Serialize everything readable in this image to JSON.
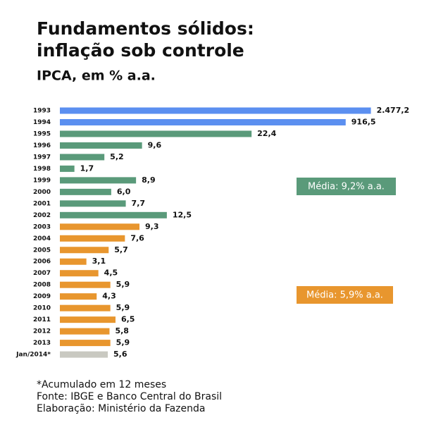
{
  "chart_data": {
    "type": "bar",
    "orientation": "horizontal",
    "title": [
      "Fundamentos sólidos:",
      "inflação sob controle"
    ],
    "subtitle": "IPCA, em % a.a.",
    "categories": [
      "1993",
      "1994",
      "1995",
      "1996",
      "1997",
      "1998",
      "1999",
      "2000",
      "2001",
      "2002",
      "2003",
      "2004",
      "2005",
      "2006",
      "2007",
      "2008",
      "2009",
      "2010",
      "2011",
      "2012",
      "2013",
      "Jan/2014*"
    ],
    "values": [
      2477.2,
      916.5,
      22.4,
      9.6,
      5.2,
      1.7,
      8.9,
      6.0,
      7.7,
      12.5,
      9.3,
      7.6,
      5.7,
      3.1,
      4.5,
      5.9,
      4.3,
      5.9,
      6.5,
      5.8,
      5.9,
      5.6
    ],
    "value_labels": [
      "2.477,2",
      "916,5",
      "22,4",
      "9,6",
      "5,2",
      "1,7",
      "8,9",
      "6,0",
      "7,7",
      "12,5",
      "9,3",
      "7,6",
      "5,7",
      "3,1",
      "4,5",
      "5,9",
      "4,3",
      "5,9",
      "6,5",
      "5,8",
      "5,9",
      "5,6"
    ],
    "colors": [
      "#5b8ff0",
      "#5b8ff0",
      "#5a9a7a",
      "#5a9a7a",
      "#5a9a7a",
      "#5a9a7a",
      "#5a9a7a",
      "#5a9a7a",
      "#5a9a7a",
      "#5a9a7a",
      "#e8962e",
      "#e8962e",
      "#e8962e",
      "#e8962e",
      "#e8962e",
      "#e8962e",
      "#e8962e",
      "#e8962e",
      "#e8962e",
      "#e8962e",
      "#e8962e",
      "#c9c9c1"
    ],
    "annotations": [
      {
        "text": "Média: 9,2% a.a.",
        "color": "#5a9a7a"
      },
      {
        "text": "Média: 5,9% a.a.",
        "color": "#e8962e"
      }
    ],
    "notes": [
      "*Acumulado em 12 meses",
      "Fonte: IBGE e Banco Central do Brasil",
      "Elaboração: Ministério da Fazenda"
    ]
  }
}
